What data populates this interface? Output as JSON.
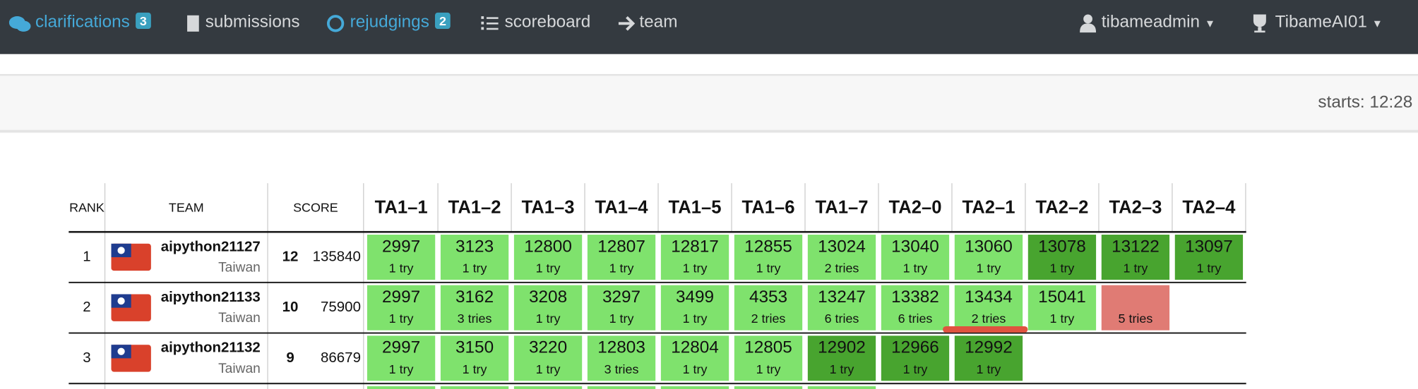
{
  "nav": {
    "items": [
      {
        "label": "clarifications",
        "badge": 3,
        "active": true
      },
      {
        "label": "submissions",
        "active": false
      },
      {
        "label": "rejudgings",
        "badge": 2,
        "active": true
      },
      {
        "label": "scoreboard",
        "active": false
      },
      {
        "label": "team",
        "active": false
      }
    ],
    "user": "tibameadmin",
    "contest": "TibameAI01"
  },
  "header": {
    "starts": "starts: 12:28"
  },
  "table": {
    "columns": [
      "RANK",
      "TEAM",
      "SCORE"
    ],
    "problems": [
      "TA1–1",
      "TA1–2",
      "TA1–3",
      "TA1–4",
      "TA1–5",
      "TA1–6",
      "TA1–7",
      "TA2–0",
      "TA2–1",
      "TA2–2",
      "TA2–3",
      "TA2–4"
    ],
    "rows": [
      {
        "rank": 1,
        "team": "aipython21127",
        "country": "Taiwan",
        "solved": 12,
        "time": 135840,
        "cells": [
          {
            "time": 2997,
            "tries": "1 try",
            "status": "correct"
          },
          {
            "time": 3123,
            "tries": "1 try",
            "status": "correct"
          },
          {
            "time": 12800,
            "tries": "1 try",
            "status": "correct"
          },
          {
            "time": 12807,
            "tries": "1 try",
            "status": "correct"
          },
          {
            "time": 12817,
            "tries": "1 try",
            "status": "correct"
          },
          {
            "time": 12855,
            "tries": "1 try",
            "status": "correct"
          },
          {
            "time": 13024,
            "tries": "2 tries",
            "status": "correct"
          },
          {
            "time": 13040,
            "tries": "1 try",
            "status": "correct"
          },
          {
            "time": 13060,
            "tries": "1 try",
            "status": "correct"
          },
          {
            "time": 13078,
            "tries": "1 try",
            "status": "first"
          },
          {
            "time": 13122,
            "tries": "1 try",
            "status": "first"
          },
          {
            "time": 13097,
            "tries": "1 try",
            "status": "first"
          }
        ]
      },
      {
        "rank": 2,
        "team": "aipython21133",
        "country": "Taiwan",
        "solved": 10,
        "time": 75900,
        "cells": [
          {
            "time": 2997,
            "tries": "1 try",
            "status": "correct"
          },
          {
            "time": 3162,
            "tries": "3 tries",
            "status": "correct"
          },
          {
            "time": 3208,
            "tries": "1 try",
            "status": "correct"
          },
          {
            "time": 3297,
            "tries": "1 try",
            "status": "correct"
          },
          {
            "time": 3499,
            "tries": "1 try",
            "status": "correct"
          },
          {
            "time": 4353,
            "tries": "2 tries",
            "status": "correct"
          },
          {
            "time": 13247,
            "tries": "6 tries",
            "status": "correct"
          },
          {
            "time": 13382,
            "tries": "6 tries",
            "status": "correct"
          },
          {
            "time": 13434,
            "tries": "2 tries",
            "status": "correct"
          },
          {
            "time": 15041,
            "tries": "1 try",
            "status": "correct"
          },
          {
            "tries": "5 tries",
            "status": "failed"
          },
          null
        ]
      },
      {
        "rank": 3,
        "team": "aipython21132",
        "country": "Taiwan",
        "solved": 9,
        "time": 86679,
        "cells": [
          {
            "time": 2997,
            "tries": "1 try",
            "status": "correct"
          },
          {
            "time": 3150,
            "tries": "1 try",
            "status": "correct"
          },
          {
            "time": 3220,
            "tries": "1 try",
            "status": "correct"
          },
          {
            "time": 12803,
            "tries": "3 tries",
            "status": "correct"
          },
          {
            "time": 12804,
            "tries": "1 try",
            "status": "correct"
          },
          {
            "time": 12805,
            "tries": "1 try",
            "status": "correct"
          },
          {
            "time": 12902,
            "tries": "1 try",
            "status": "first"
          },
          {
            "time": 12966,
            "tries": "1 try",
            "status": "first"
          },
          {
            "time": 12992,
            "tries": "1 try",
            "status": "first"
          },
          null,
          null,
          null
        ]
      }
    ]
  }
}
